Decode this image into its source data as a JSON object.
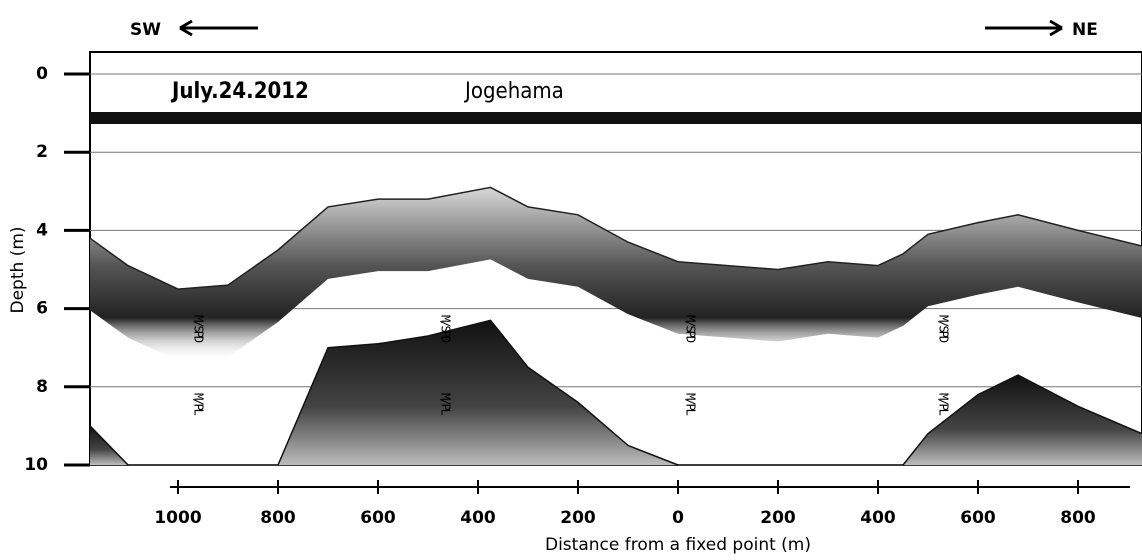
{
  "chart_data": {
    "type": "echogram",
    "title": "July.24.2012",
    "subtitle": "Jogehama",
    "left_direction": "SW",
    "right_direction": "NE",
    "x_label": "Distance from a fixed point (m)",
    "y_label": "Depth (m)",
    "annotations": [
      "M/SPD",
      "M/PL"
    ],
    "x": [
      -1176,
      -1100,
      -1000,
      -900,
      -800,
      -700,
      -600,
      -500,
      -375,
      -300,
      -200,
      -100,
      0,
      200,
      300,
      400,
      450,
      500,
      600,
      680,
      800,
      928
    ],
    "series": [
      {
        "color": "#222222",
        "values": [
          4.2,
          4.9,
          5.5,
          5.4,
          4.5,
          3.4,
          3.2,
          3.2,
          2.9,
          3.4,
          3.6,
          4.3,
          4.8,
          5.0,
          4.8,
          4.9,
          4.6,
          4.1,
          3.8,
          3.6,
          4.0,
          4.4
        ]
      },
      {
        "color": "#111111",
        "values": [
          9.0,
          10.0,
          null,
          null,
          10.0,
          7.0,
          6.9,
          6.7,
          6.3,
          7.5,
          8.4,
          9.5,
          10.0,
          null,
          null,
          null,
          10.0,
          9.2,
          8.2,
          7.7,
          8.5,
          9.2
        ]
      }
    ],
    "xlim": [
      -1176,
      928
    ],
    "xticks": [
      {
        "value": -1000,
        "label": "1000"
      },
      {
        "value": -800,
        "label": "800"
      },
      {
        "value": -600,
        "label": "600"
      },
      {
        "value": -400,
        "label": "400"
      },
      {
        "value": -200,
        "label": "200"
      },
      0,
      200,
      400,
      600,
      800
    ],
    "ylim": [
      0,
      10
    ],
    "yticks": [
      0,
      2,
      4,
      6,
      8,
      10
    ],
    "y_inverted": true,
    "grid": true
  }
}
